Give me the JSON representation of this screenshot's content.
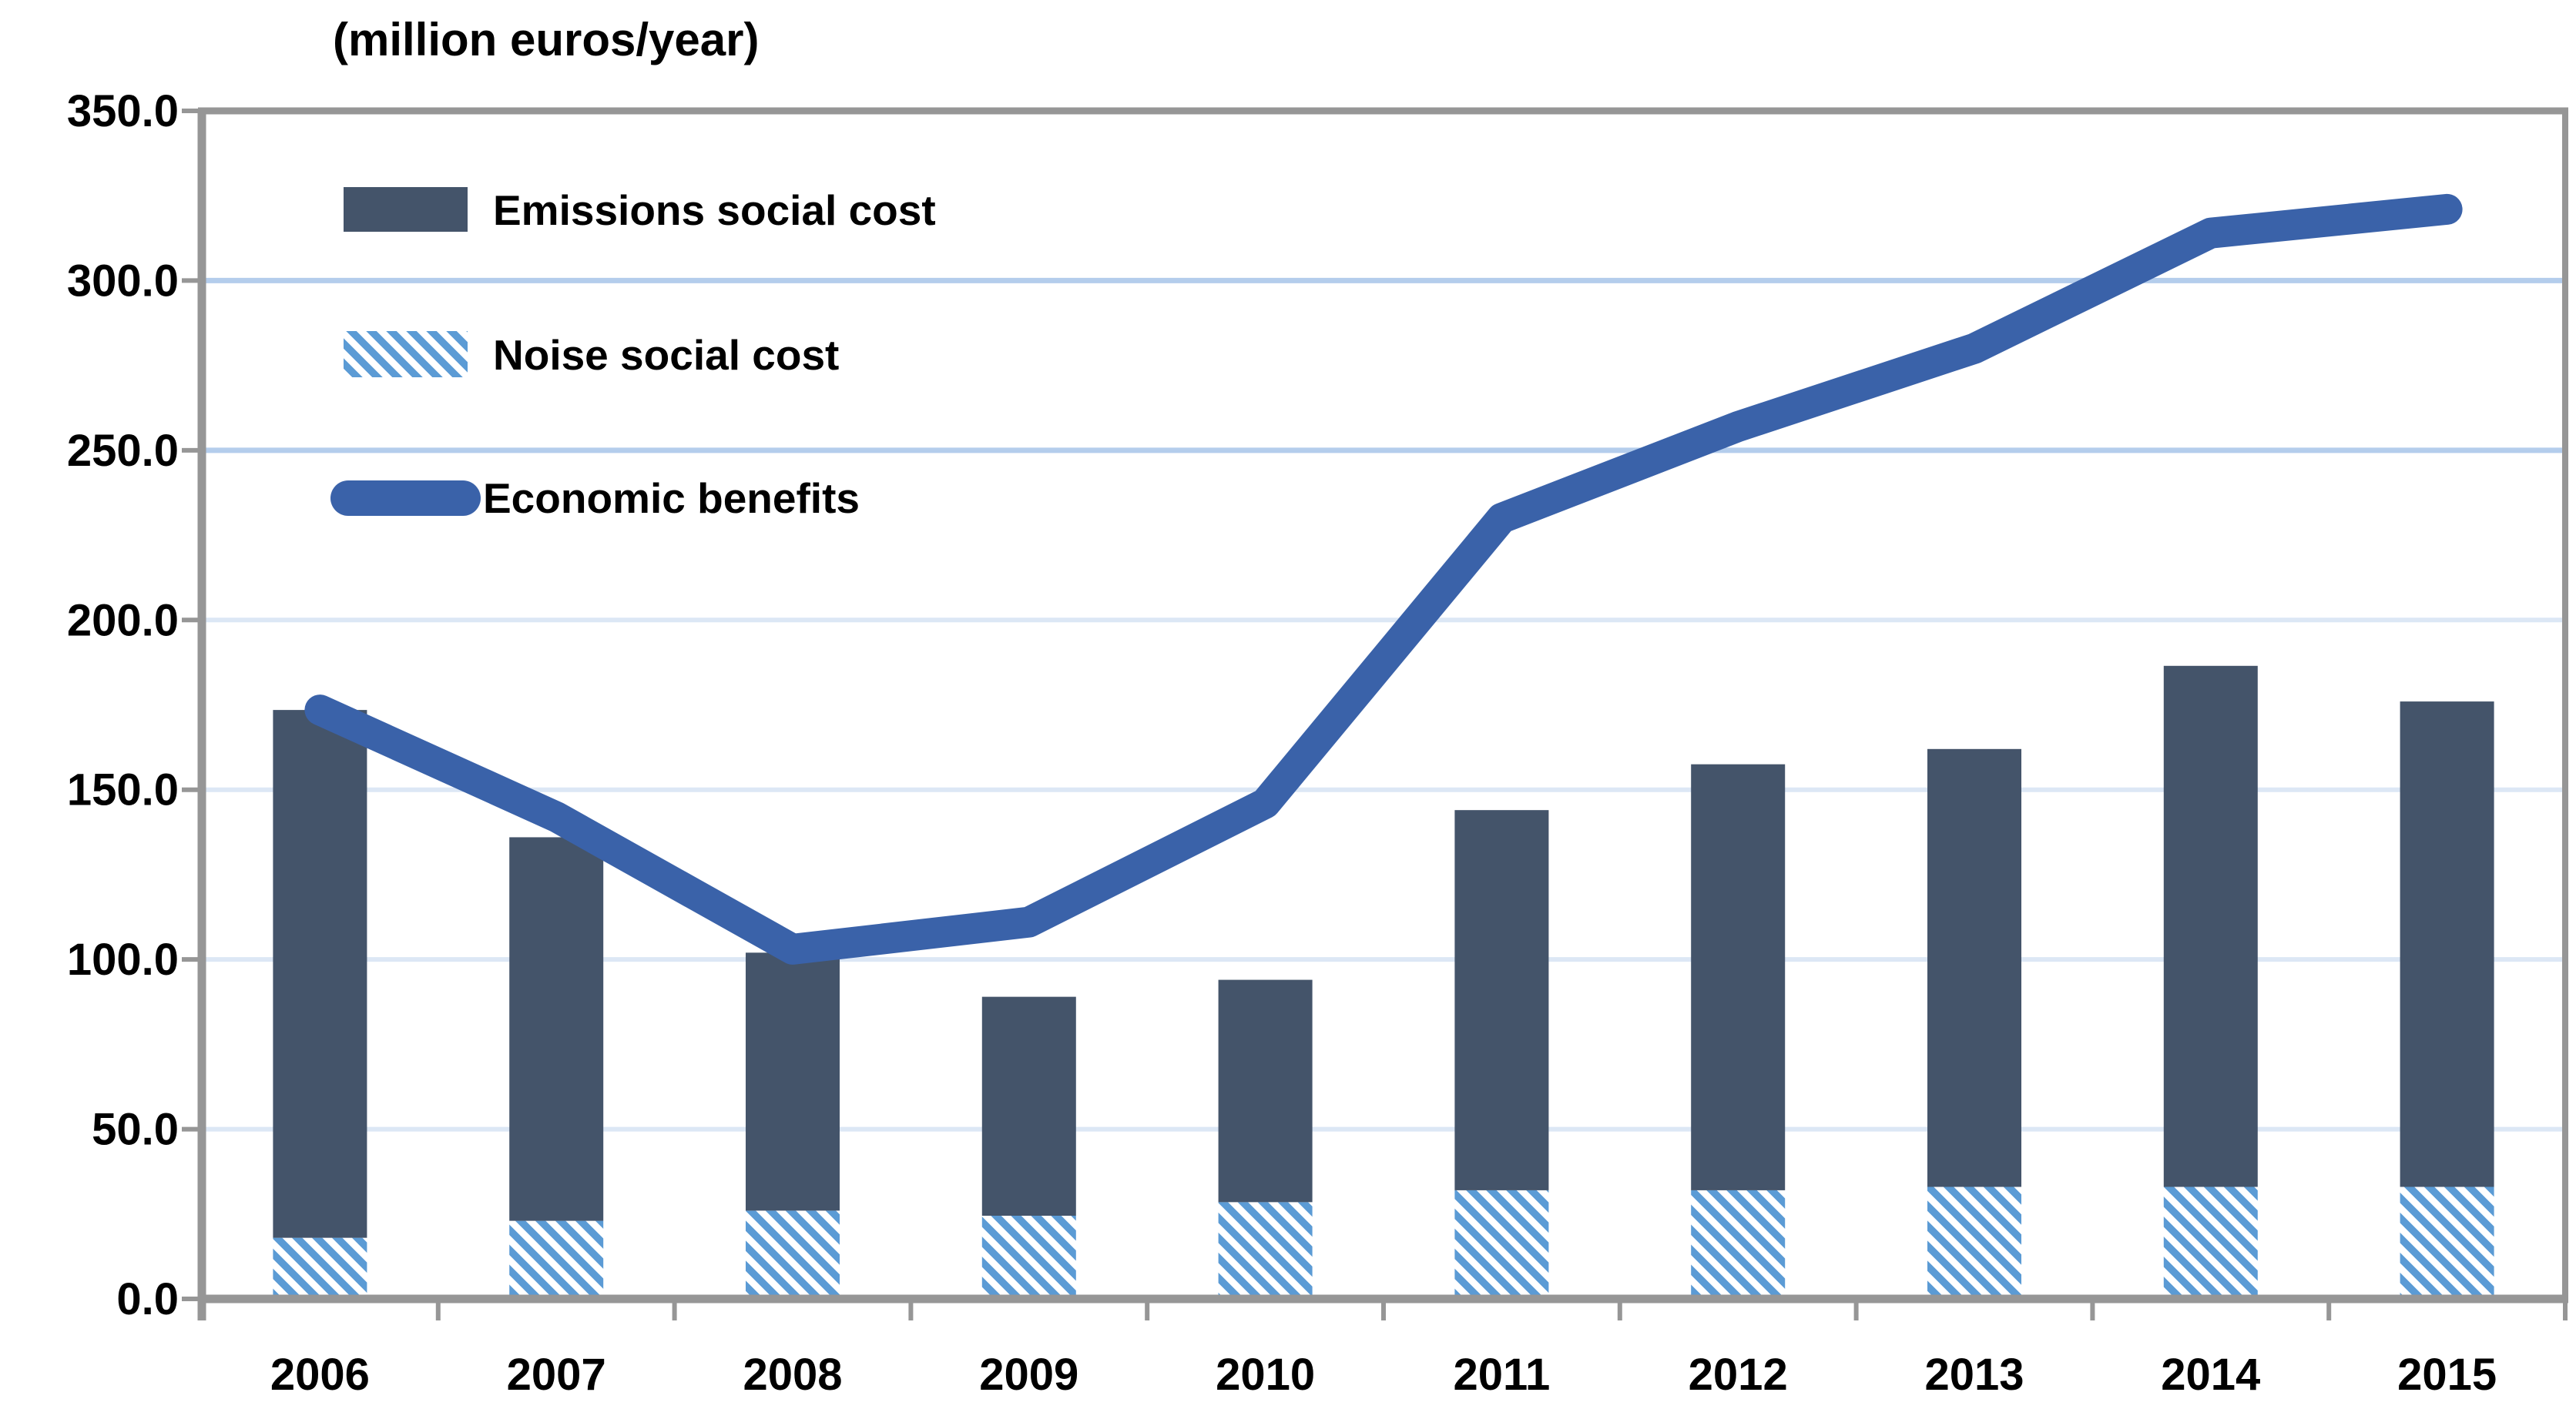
{
  "title": "(million euros/year)",
  "legend": {
    "position": "top-left-inside",
    "items": [
      {
        "label": "Emissions social cost",
        "swatch": "solid-bar-swatch"
      },
      {
        "label": "Noise social cost",
        "swatch": "hatch-bar-swatch"
      },
      {
        "label": "Economic benefits",
        "swatch": "line-swatch"
      }
    ]
  },
  "chart_data": {
    "type": "combo-stacked-bar-line",
    "title": "(million euros/year)",
    "categories": [
      "2006",
      "2007",
      "2008",
      "2009",
      "2010",
      "2011",
      "2012",
      "2013",
      "2014",
      "2015"
    ],
    "series": [
      {
        "name": "Noise social cost",
        "type": "bar",
        "stack": "costs",
        "stack_order": 0,
        "style": "hatched",
        "values": [
          18,
          23,
          26,
          24.5,
          28.5,
          32,
          32,
          33,
          33,
          33
        ]
      },
      {
        "name": "Emissions social cost",
        "type": "bar",
        "stack": "costs",
        "stack_order": 1,
        "style": "solid",
        "values": [
          155.5,
          113,
          76,
          64.5,
          65.5,
          112,
          125.5,
          129,
          153.5,
          143
        ]
      },
      {
        "name": "Economic benefits",
        "type": "line",
        "values": [
          173.5,
          142,
          103,
          111,
          146,
          230,
          257,
          280,
          314,
          321
        ]
      }
    ],
    "stack_totals": [
      173.5,
      136,
      102,
      89,
      94,
      144,
      157.5,
      162,
      186.5,
      176
    ],
    "xlabel": "",
    "ylabel": "(million euros/year)",
    "ylim": [
      0,
      350
    ],
    "ytick_step": 50,
    "ytick_labels": [
      "0.0",
      "50.0",
      "100.0",
      "150.0",
      "200.0",
      "250.0",
      "300.0",
      "350.0"
    ],
    "grid": true,
    "legend_position": "top-left-inside"
  },
  "colors": {
    "emissions_bar": "#44546A",
    "noise_hatch": "#5B9BD5",
    "noise_background": "#FFFFFF",
    "benefits_line": "#3A62A9",
    "grid_pale": "#DCE7F5",
    "grid_strong": "#B4CDEC",
    "axis_gray": "#969696",
    "text": "#000000",
    "background": "#FFFFFF"
  },
  "grid_strong_levels": [
    250,
    300
  ]
}
